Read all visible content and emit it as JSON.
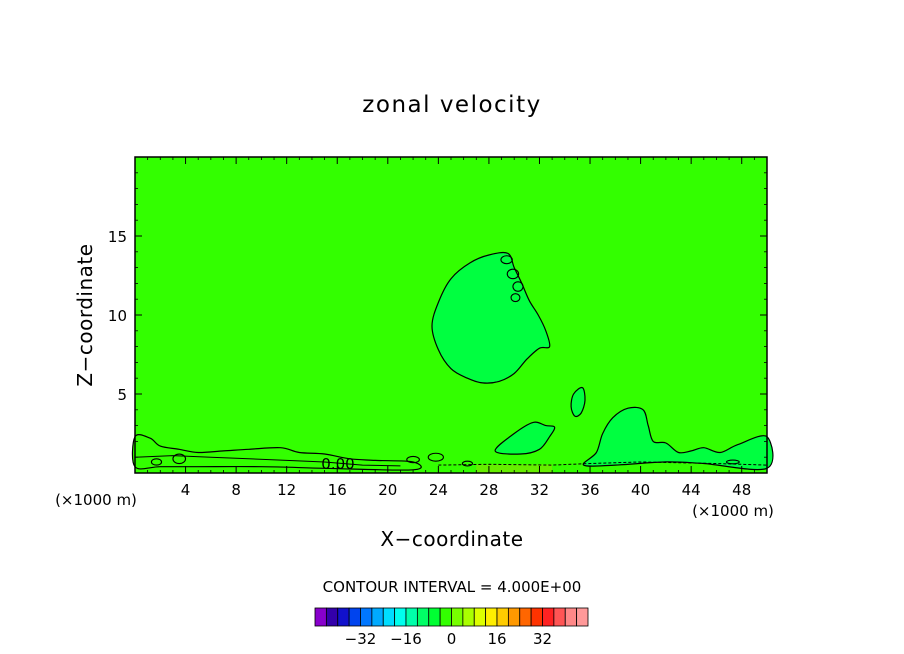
{
  "chart_data": {
    "type": "contour",
    "title": "zonal velocity",
    "xlabel": "X−coordinate",
    "ylabel": "Z−coordinate",
    "x_unit_left": "(×1000 m)",
    "x_unit_right": "(×1000 m)",
    "xlim": [
      0,
      50
    ],
    "ylim": [
      0,
      20
    ],
    "x_ticks": [
      4,
      8,
      12,
      16,
      20,
      24,
      28,
      32,
      36,
      40,
      44,
      48
    ],
    "x_tick_labels": [
      "4",
      "8",
      "12",
      "16",
      "20",
      "24",
      "28",
      "32",
      "36",
      "40",
      "44",
      "48"
    ],
    "y_ticks": [
      5,
      10,
      15
    ],
    "y_tick_labels": [
      "5",
      "10",
      "15"
    ],
    "contour_label": "0.00",
    "contour_interval_text": "CONTOUR INTERVAL = 4.000E+00",
    "contour_interval": 4.0,
    "background_color": "#33ff00",
    "anomaly_color": "#00ff40",
    "surface_color": "#66ee00",
    "regions": [
      {
        "name": "upper-anomaly",
        "points": [
          [
            29.5,
            13.9
          ],
          [
            28,
            13.8
          ],
          [
            26.5,
            13.3
          ],
          [
            25,
            12.3
          ],
          [
            24,
            10.8
          ],
          [
            23.5,
            9.3
          ],
          [
            24,
            7.8
          ],
          [
            25,
            6.6
          ],
          [
            26.3,
            6
          ],
          [
            27.5,
            5.7
          ],
          [
            28.8,
            5.8
          ],
          [
            30,
            6.3
          ],
          [
            31,
            7.2
          ],
          [
            32,
            7.9
          ],
          [
            32.8,
            8
          ],
          [
            32.5,
            9
          ],
          [
            31.9,
            10
          ],
          [
            31.2,
            10.9
          ],
          [
            30.6,
            12
          ],
          [
            30,
            13
          ]
        ]
      },
      {
        "name": "blob-36",
        "points": [
          [
            35.4,
            5.4
          ],
          [
            35.6,
            4.6
          ],
          [
            35.3,
            3.8
          ],
          [
            34.8,
            3.6
          ],
          [
            34.5,
            4.2
          ],
          [
            34.7,
            5
          ]
        ]
      },
      {
        "name": "mid-blob-30",
        "points": [
          [
            28.5,
            1.4
          ],
          [
            30,
            2.5
          ],
          [
            31.5,
            3.2
          ],
          [
            32.5,
            3
          ],
          [
            33.2,
            2.9
          ],
          [
            32.8,
            2.3
          ],
          [
            32,
            1.5
          ],
          [
            30.5,
            1.2
          ]
        ]
      },
      {
        "name": "right-blob-39",
        "points": [
          [
            35.5,
            0.5
          ],
          [
            36.5,
            1.3
          ],
          [
            37,
            2.5
          ],
          [
            37.8,
            3.5
          ],
          [
            39,
            4.1
          ],
          [
            40.2,
            4
          ],
          [
            40.6,
            3
          ],
          [
            41,
            2
          ],
          [
            42,
            1.9
          ],
          [
            43,
            1.3
          ],
          [
            44,
            1.4
          ],
          [
            45,
            1.6
          ],
          [
            46.3,
            1.3
          ],
          [
            47.7,
            1.8
          ],
          [
            50,
            2.3
          ],
          [
            50,
            0.3
          ],
          [
            45,
            0.6
          ],
          [
            42,
            0.7
          ],
          [
            38,
            0.5
          ]
        ]
      },
      {
        "name": "left-surface-strip",
        "points": [
          [
            0,
            2.3
          ],
          [
            1.2,
            2.2
          ],
          [
            2,
            1.7
          ],
          [
            3.5,
            1.5
          ],
          [
            5,
            1.3
          ],
          [
            7,
            1.4
          ],
          [
            9,
            1.5
          ],
          [
            11.5,
            1.6
          ],
          [
            13,
            1.3
          ],
          [
            15,
            1.2
          ],
          [
            17,
            0.9
          ],
          [
            19,
            0.8
          ],
          [
            22,
            0.7
          ],
          [
            22,
            0.2
          ],
          [
            15,
            0.3
          ],
          [
            10,
            0.4
          ],
          [
            5,
            0.4
          ],
          [
            2,
            0.4
          ],
          [
            0,
            0.4
          ]
        ]
      }
    ],
    "small_contours": [
      {
        "x": 29.4,
        "y": 13.5,
        "rx": 0.45,
        "ry": 0.25
      },
      {
        "x": 29.9,
        "y": 12.6,
        "rx": 0.45,
        "ry": 0.3
      },
      {
        "x": 30.3,
        "y": 11.8,
        "rx": 0.4,
        "ry": 0.3
      },
      {
        "x": 30.1,
        "y": 11.1,
        "rx": 0.35,
        "ry": 0.25
      },
      {
        "x": 23.8,
        "y": 1.0,
        "rx": 0.6,
        "ry": 0.25
      },
      {
        "x": 22.0,
        "y": 0.85,
        "rx": 0.5,
        "ry": 0.2
      },
      {
        "x": 26.3,
        "y": 0.6,
        "rx": 0.4,
        "ry": 0.15
      },
      {
        "x": 3.5,
        "y": 0.9,
        "rx": 0.5,
        "ry": 0.3
      },
      {
        "x": 1.7,
        "y": 0.7,
        "rx": 0.4,
        "ry": 0.2
      },
      {
        "x": 47.3,
        "y": 0.7,
        "rx": 0.5,
        "ry": 0.12
      }
    ],
    "colorbar": {
      "colors": [
        "#8800cc",
        "#3300aa",
        "#1111cc",
        "#0044ee",
        "#0077ff",
        "#00aaff",
        "#00ddff",
        "#00ffee",
        "#00ffaa",
        "#00ff66",
        "#00ff33",
        "#33ff00",
        "#77ff00",
        "#aaff00",
        "#ddff00",
        "#ffee00",
        "#ffcc00",
        "#ff9900",
        "#ff6600",
        "#ff3300",
        "#ff2222",
        "#ff5555",
        "#ff8888",
        "#ff9999"
      ],
      "tick_values": [
        -32,
        -16,
        0,
        16,
        32
      ],
      "tick_labels": [
        "−32",
        "−16",
        "0",
        "16",
        "32"
      ],
      "range": [
        -48,
        48
      ]
    }
  }
}
